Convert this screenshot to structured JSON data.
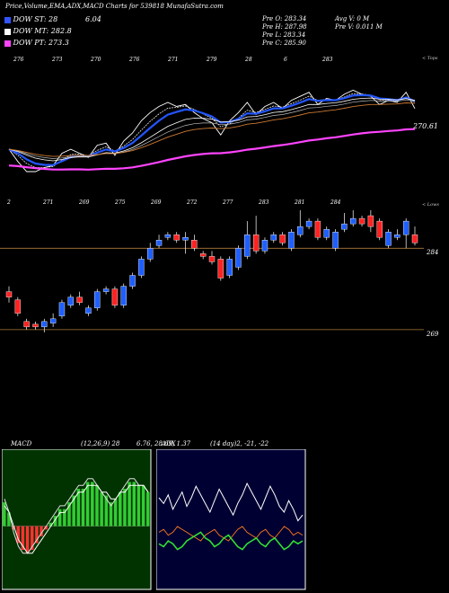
{
  "header": {
    "title": "Price,Volume,EMA,ADX,MACD Charts for 539818 MunafaSutra.com"
  },
  "legend": [
    {
      "label": "DOW ST: 28",
      "color": "#3355ff"
    },
    {
      "label": "DOW MT: 282.8",
      "color": "#ffffff"
    },
    {
      "label": "DOW PT: 273.3",
      "color": "#ff44ff"
    }
  ],
  "legend_value": "6.04",
  "ohlc": {
    "open": "Pre O: 283.34",
    "high": "Pre H: 287.98",
    "low": "Pre L: 283.34",
    "close": "Pre C: 285.90"
  },
  "volume": {
    "avg": "Avg V: 0 M",
    "prev": "Pre V: 0.011 M"
  },
  "top_tag": "< Tops",
  "lows_tag": "< Lows",
  "ema_last_label": "270.61",
  "price_right_labels": [
    "284",
    "269"
  ],
  "macd": {
    "title": "MACD",
    "params": "(12,26,9) 28",
    "values": "6.76, 28.69, 1.37"
  },
  "adx": {
    "title": "ADX",
    "params": "(14 day)2, -21, -22"
  },
  "top_tick_labels": [
    "276",
    "273",
    "270",
    "276",
    "271",
    "279",
    "28",
    "6",
    "283"
  ],
  "bottom_tick_labels": [
    "2",
    "271",
    "269",
    "275",
    "269",
    "272",
    "277",
    "283",
    "281",
    "284"
  ],
  "chart_data": [
    {
      "type": "candlestick",
      "title": "Price,Volume,EMA,ADX,MACD Charts for 539818 MunafaSutra.com",
      "reference_levels": [
        284,
        269
      ],
      "candles": [
        {
          "o": 276.0,
          "c": 275.0,
          "h": 277.0,
          "l": 274.0,
          "dir": "down"
        },
        {
          "o": 274.5,
          "c": 272.0,
          "h": 275.0,
          "l": 271.5,
          "dir": "down"
        },
        {
          "o": 270.5,
          "c": 269.5,
          "h": 271.0,
          "l": 269.0,
          "dir": "down"
        },
        {
          "o": 270.0,
          "c": 269.5,
          "h": 270.5,
          "l": 269.0,
          "dir": "down"
        },
        {
          "o": 269.5,
          "c": 270.5,
          "h": 271.0,
          "l": 268.5,
          "dir": "up"
        },
        {
          "o": 270.2,
          "c": 271.0,
          "h": 272.0,
          "l": 269.5,
          "dir": "up"
        },
        {
          "o": 271.5,
          "c": 274.0,
          "h": 274.5,
          "l": 271.0,
          "dir": "up"
        },
        {
          "o": 273.5,
          "c": 275.0,
          "h": 275.5,
          "l": 273.0,
          "dir": "up"
        },
        {
          "o": 275.0,
          "c": 274.0,
          "h": 276.0,
          "l": 273.5,
          "dir": "down"
        },
        {
          "o": 272.0,
          "c": 273.0,
          "h": 273.5,
          "l": 271.5,
          "dir": "up"
        },
        {
          "o": 273.0,
          "c": 276.0,
          "h": 276.5,
          "l": 272.5,
          "dir": "up"
        },
        {
          "o": 276.0,
          "c": 276.5,
          "h": 277.0,
          "l": 275.5,
          "dir": "up"
        },
        {
          "o": 276.5,
          "c": 273.5,
          "h": 277.0,
          "l": 273.0,
          "dir": "down"
        },
        {
          "o": 273.5,
          "c": 277.0,
          "h": 277.5,
          "l": 273.0,
          "dir": "up"
        },
        {
          "o": 277.0,
          "c": 279.0,
          "h": 279.5,
          "l": 276.5,
          "dir": "up"
        },
        {
          "o": 279.0,
          "c": 282.0,
          "h": 282.5,
          "l": 278.5,
          "dir": "up"
        },
        {
          "o": 282.0,
          "c": 284.0,
          "h": 285.0,
          "l": 281.5,
          "dir": "up"
        },
        {
          "o": 284.5,
          "c": 285.5,
          "h": 286.5,
          "l": 284.0,
          "dir": "up"
        },
        {
          "o": 286.0,
          "c": 286.5,
          "h": 287.0,
          "l": 285.5,
          "dir": "up"
        },
        {
          "o": 286.5,
          "c": 285.5,
          "h": 287.0,
          "l": 285.0,
          "dir": "down"
        },
        {
          "o": 285.5,
          "c": 286.0,
          "h": 287.0,
          "l": 283.0,
          "dir": "up"
        },
        {
          "o": 285.5,
          "c": 284.0,
          "h": 286.5,
          "l": 283.5,
          "dir": "down"
        },
        {
          "o": 283.0,
          "c": 282.5,
          "h": 283.5,
          "l": 282.0,
          "dir": "down"
        },
        {
          "o": 282.5,
          "c": 281.5,
          "h": 283.5,
          "l": 281.0,
          "dir": "down"
        },
        {
          "o": 282.0,
          "c": 278.5,
          "h": 282.5,
          "l": 278.0,
          "dir": "down"
        },
        {
          "o": 279.0,
          "c": 282.0,
          "h": 282.5,
          "l": 278.5,
          "dir": "up"
        },
        {
          "o": 280.5,
          "c": 284.0,
          "h": 284.5,
          "l": 280.0,
          "dir": "up"
        },
        {
          "o": 282.5,
          "c": 286.5,
          "h": 289.0,
          "l": 282.0,
          "dir": "up"
        },
        {
          "o": 286.5,
          "c": 283.5,
          "h": 290.0,
          "l": 283.0,
          "dir": "down"
        },
        {
          "o": 283.5,
          "c": 285.5,
          "h": 286.0,
          "l": 283.0,
          "dir": "up"
        },
        {
          "o": 285.5,
          "c": 286.5,
          "h": 287.0,
          "l": 285.0,
          "dir": "up"
        },
        {
          "o": 286.5,
          "c": 285.0,
          "h": 287.0,
          "l": 284.5,
          "dir": "down"
        },
        {
          "o": 284.0,
          "c": 287.0,
          "h": 287.5,
          "l": 283.5,
          "dir": "up"
        },
        {
          "o": 286.5,
          "c": 288.0,
          "h": 291.0,
          "l": 286.0,
          "dir": "up"
        },
        {
          "o": 288.0,
          "c": 289.0,
          "h": 289.5,
          "l": 287.5,
          "dir": "up"
        },
        {
          "o": 289.0,
          "c": 286.0,
          "h": 289.5,
          "l": 285.5,
          "dir": "down"
        },
        {
          "o": 286.0,
          "c": 287.5,
          "h": 288.0,
          "l": 285.5,
          "dir": "up"
        },
        {
          "o": 284.0,
          "c": 287.0,
          "h": 287.5,
          "l": 283.5,
          "dir": "up"
        },
        {
          "o": 287.5,
          "c": 288.5,
          "h": 290.5,
          "l": 287.0,
          "dir": "up"
        },
        {
          "o": 288.5,
          "c": 289.5,
          "h": 291.0,
          "l": 288.0,
          "dir": "up"
        },
        {
          "o": 289.5,
          "c": 288.5,
          "h": 290.0,
          "l": 288.0,
          "dir": "down"
        },
        {
          "o": 290.0,
          "c": 288.0,
          "h": 291.0,
          "l": 287.0,
          "dir": "down"
        },
        {
          "o": 289.0,
          "c": 286.0,
          "h": 289.5,
          "l": 285.5,
          "dir": "down"
        },
        {
          "o": 284.5,
          "c": 287.0,
          "h": 287.5,
          "l": 284.0,
          "dir": "up"
        },
        {
          "o": 286.0,
          "c": 286.5,
          "h": 287.5,
          "l": 285.5,
          "dir": "up"
        },
        {
          "o": 286.5,
          "c": 289.0,
          "h": 289.5,
          "l": 284.0,
          "dir": "up"
        },
        {
          "o": 286.5,
          "c": 285.0,
          "h": 288.0,
          "l": 284.5,
          "dir": "down"
        }
      ]
    },
    {
      "type": "line",
      "title": "MACD",
      "series": [
        {
          "values": [
            4,
            2,
            -1,
            -3,
            -4,
            -4,
            -3,
            -2,
            -1,
            0,
            1,
            2,
            3,
            3,
            4,
            5,
            6,
            6,
            7,
            7,
            6,
            5,
            4,
            3,
            4,
            5,
            6,
            7,
            7,
            6,
            6,
            5
          ]
        },
        {
          "values": [
            3,
            2,
            0,
            -2,
            -3,
            -4,
            -4,
            -3,
            -2,
            -1,
            0,
            1,
            2,
            2,
            3,
            4,
            5,
            5,
            6,
            6,
            6,
            5,
            5,
            4,
            4,
            5,
            5,
            6,
            6,
            6,
            6,
            5
          ]
        }
      ]
    },
    {
      "type": "line",
      "title": "ADX",
      "series": [
        {
          "values": [
            30,
            28,
            31,
            26,
            29,
            32,
            27,
            30,
            34,
            31,
            28,
            25,
            29,
            33,
            30,
            27,
            24,
            28,
            31,
            35,
            32,
            29,
            26,
            30,
            34,
            31,
            27,
            25,
            29,
            26,
            22,
            24
          ]
        },
        {
          "values": [
            18,
            19,
            17,
            18,
            20,
            19,
            18,
            17,
            16,
            15,
            17,
            18,
            19,
            17,
            16,
            15,
            17,
            19,
            20,
            18,
            17,
            16,
            18,
            19,
            17,
            16,
            18,
            20,
            19,
            17,
            18,
            17
          ]
        },
        {
          "values": [
            14,
            13,
            15,
            14,
            12,
            13,
            15,
            16,
            17,
            18,
            16,
            15,
            13,
            14,
            16,
            17,
            15,
            13,
            12,
            14,
            15,
            16,
            14,
            13,
            15,
            16,
            14,
            12,
            13,
            15,
            14,
            15
          ]
        }
      ]
    }
  ]
}
